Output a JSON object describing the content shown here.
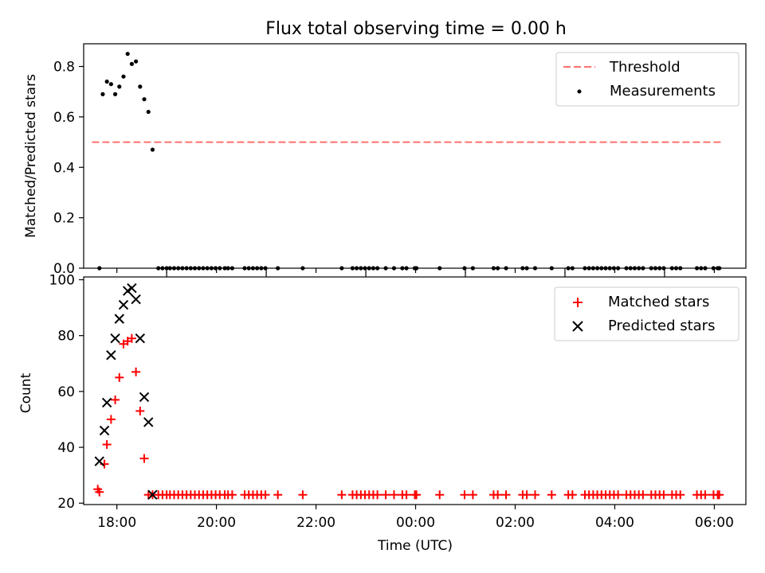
{
  "figure": {
    "title": "Flux total observing time = 0.00 h",
    "xlabel": "Time (UTC)"
  },
  "chart_data": [
    {
      "type": "scatter",
      "title": "Flux total observing time = 0.00 h",
      "ylabel": "Matched/Predicted stars",
      "xlim": [
        "17:20",
        "06:38"
      ],
      "ylim": [
        0,
        0.89
      ],
      "yticks": [
        "0.0",
        "0.2",
        "0.4",
        "0.6",
        "0.8"
      ],
      "grid": false,
      "legend_position": "top-right",
      "series": [
        {
          "name": "Threshold",
          "kind": "dashed-line",
          "color": "#ff7070",
          "x": [
            "17:30",
            "06:08"
          ],
          "y": [
            0.5,
            0.5
          ]
        },
        {
          "name": "Measurements",
          "kind": "points",
          "color": "#000000",
          "x": [
            "17:39",
            "17:43",
            "17:48",
            "17:53",
            "17:58",
            "18:03",
            "18:08",
            "18:13",
            "18:18",
            "18:23",
            "18:28",
            "18:33",
            "18:38",
            "18:43"
          ],
          "y": [
            0.0,
            0.69,
            0.74,
            0.73,
            0.69,
            0.72,
            0.76,
            0.85,
            0.81,
            0.82,
            0.72,
            0.67,
            0.62,
            0.47
          ]
        },
        {
          "name": "",
          "kind": "points",
          "color": "#000000",
          "x": [
            "18:50",
            "18:55",
            "19:00",
            "19:04",
            "19:09",
            "19:14",
            "19:19",
            "19:24",
            "19:29",
            "19:34",
            "19:39",
            "19:44",
            "19:49",
            "19:54",
            "19:59",
            "20:04",
            "20:10",
            "20:14",
            "20:19",
            "20:34",
            "20:39",
            "20:44",
            "20:49",
            "20:54",
            "20:59",
            "21:14",
            "21:44",
            "22:31",
            "22:44",
            "22:49",
            "22:54",
            "22:59",
            "23:04",
            "23:09",
            "23:14",
            "23:24",
            "23:34",
            "23:44",
            "23:49",
            "23:59",
            "00:01",
            "00:29",
            "00:59",
            "01:09",
            "01:34",
            "01:39",
            "01:49",
            "02:09",
            "02:14",
            "02:24",
            "02:44",
            "03:04",
            "03:09",
            "03:24",
            "03:29",
            "03:34",
            "03:39",
            "03:44",
            "03:49",
            "03:54",
            "03:59",
            "04:04",
            "04:14",
            "04:19",
            "04:24",
            "04:29",
            "04:34",
            "04:44",
            "04:49",
            "04:54",
            "04:59",
            "05:09",
            "05:14",
            "05:19",
            "05:39",
            "05:44",
            "05:49",
            "05:59",
            "06:04",
            "06:06"
          ],
          "y": [
            0,
            0,
            0,
            0,
            0,
            0,
            0,
            0,
            0,
            0,
            0,
            0,
            0,
            0,
            0,
            0,
            0,
            0,
            0,
            0,
            0,
            0,
            0,
            0,
            0,
            0,
            0,
            0,
            0,
            0,
            0,
            0,
            0,
            0,
            0,
            0,
            0,
            0,
            0,
            0,
            0,
            0,
            0,
            0,
            0,
            0,
            0,
            0,
            0,
            0,
            0,
            0,
            0,
            0,
            0,
            0,
            0,
            0,
            0,
            0,
            0,
            0,
            0,
            0,
            0,
            0,
            0,
            0,
            0,
            0,
            0,
            0,
            0,
            0,
            0,
            0,
            0,
            0,
            0,
            0
          ]
        }
      ]
    },
    {
      "type": "scatter",
      "ylabel": "Count",
      "xlabel": "Time (UTC)",
      "xlim": [
        "17:20",
        "06:38"
      ],
      "ylim": [
        19.5,
        101
      ],
      "yticks": [
        "20",
        "40",
        "60",
        "80",
        "100"
      ],
      "xticks": [
        "18:00",
        "20:00",
        "22:00",
        "00:00",
        "02:00",
        "04:00",
        "06:00"
      ],
      "grid": false,
      "legend_position": "top-right",
      "series": [
        {
          "name": "Matched stars",
          "marker": "+",
          "color": "#ff0000",
          "x": [
            "17:37",
            "17:39",
            "17:45",
            "17:48",
            "17:53",
            "17:58",
            "18:03",
            "18:08",
            "18:13",
            "18:18",
            "18:23",
            "18:28",
            "18:33",
            "18:38"
          ],
          "y": [
            25,
            24,
            34,
            41,
            50,
            57,
            65,
            77,
            78,
            79,
            67,
            53,
            36,
            23
          ]
        },
        {
          "name": "",
          "marker": "+",
          "color": "#ff0000",
          "x": [
            "18:43",
            "18:50",
            "18:55",
            "19:00",
            "19:04",
            "19:09",
            "19:14",
            "19:19",
            "19:24",
            "19:29",
            "19:34",
            "19:39",
            "19:44",
            "19:49",
            "19:54",
            "19:59",
            "20:04",
            "20:10",
            "20:14",
            "20:19",
            "20:34",
            "20:39",
            "20:44",
            "20:49",
            "20:54",
            "20:59",
            "21:14",
            "21:44",
            "22:31",
            "22:44",
            "22:49",
            "22:54",
            "22:59",
            "23:04",
            "23:09",
            "23:14",
            "23:24",
            "23:34",
            "23:44",
            "23:49",
            "23:59",
            "00:01",
            "00:29",
            "00:59",
            "01:09",
            "01:34",
            "01:39",
            "01:49",
            "02:09",
            "02:14",
            "02:24",
            "02:44",
            "03:04",
            "03:09",
            "03:24",
            "03:29",
            "03:34",
            "03:39",
            "03:44",
            "03:49",
            "03:54",
            "03:59",
            "04:04",
            "04:14",
            "04:19",
            "04:24",
            "04:29",
            "04:34",
            "04:44",
            "04:49",
            "04:54",
            "04:59",
            "05:09",
            "05:14",
            "05:19",
            "05:39",
            "05:44",
            "05:49",
            "05:59",
            "06:04",
            "06:06"
          ],
          "y": [
            23,
            23,
            23,
            23,
            23,
            23,
            23,
            23,
            23,
            23,
            23,
            23,
            23,
            23,
            23,
            23,
            23,
            23,
            23,
            23,
            23,
            23,
            23,
            23,
            23,
            23,
            23,
            23,
            23,
            23,
            23,
            23,
            23,
            23,
            23,
            23,
            23,
            23,
            23,
            23,
            23,
            23,
            23,
            23,
            23,
            23,
            23,
            23,
            23,
            23,
            23,
            23,
            23,
            23,
            23,
            23,
            23,
            23,
            23,
            23,
            23,
            23,
            23,
            23,
            23,
            23,
            23,
            23,
            23,
            23,
            23,
            23,
            23,
            23,
            23,
            23,
            23,
            23,
            23,
            23,
            23
          ]
        },
        {
          "name": "Predicted stars",
          "marker": "x",
          "color": "#000000",
          "x": [
            "17:39",
            "17:45",
            "17:48",
            "17:53",
            "17:58",
            "18:03",
            "18:08",
            "18:13",
            "18:18",
            "18:23",
            "18:28",
            "18:33",
            "18:38",
            "18:43"
          ],
          "y": [
            35,
            46,
            56,
            73,
            79,
            86,
            91,
            96,
            97,
            93,
            79,
            58,
            49,
            23
          ]
        }
      ]
    }
  ]
}
